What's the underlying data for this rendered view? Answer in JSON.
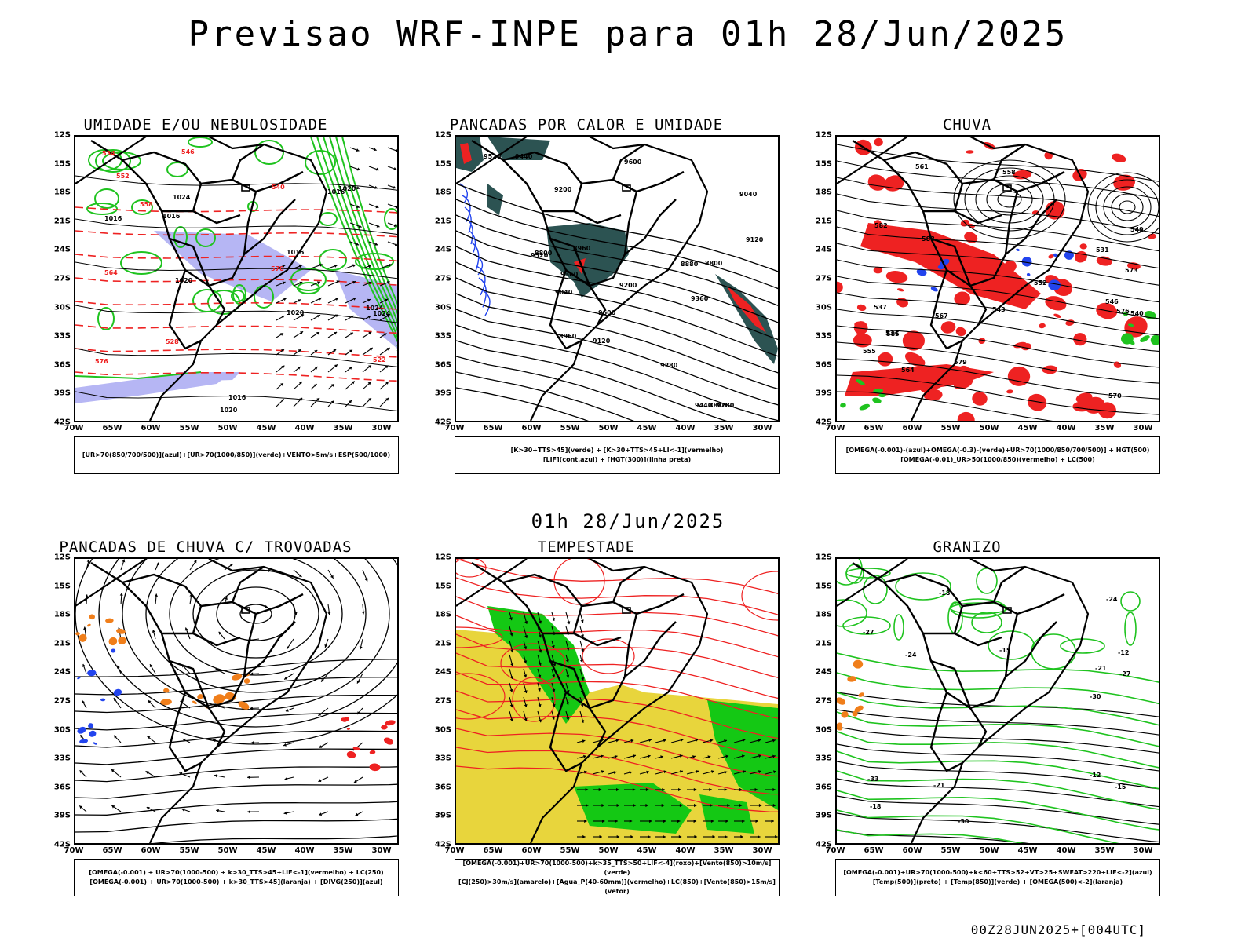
{
  "title": "Previsao WRF-INPE  para 01h 28/Jun/2025",
  "subtitle": "01h 28/Jun/2025",
  "footer": "00Z28JUN2025+[004UTC]",
  "lat_ticks": [
    "12S",
    "15S",
    "18S",
    "21S",
    "24S",
    "27S",
    "30S",
    "33S",
    "36S",
    "39S",
    "42S"
  ],
  "lon_ticks": [
    "70W",
    "65W",
    "60W",
    "55W",
    "50W",
    "45W",
    "40W",
    "35W",
    "30W"
  ],
  "colors": {
    "green": "#1fc31f",
    "red": "#ee2222",
    "blue": "#2244ee",
    "lavender": "#b6b6f4",
    "orange": "#f07e1a",
    "yellow": "#e8d53c",
    "darkgreen": "#2c5352",
    "vivid_green": "#14c814"
  },
  "panels": [
    {
      "id": "umidade",
      "title": "UMIDADE E/OU NEBULOSIDADE",
      "legend": [
        "[UR>70(850/700/500)](azul)+[UR>70(1000/850)](verde)+VENTO>5m/s+ESP(500/1000)"
      ],
      "contour_labels": [
        "1016",
        "1016",
        "1016",
        "1016",
        "1016",
        "1020",
        "1020",
        "1020",
        "1020",
        "1024",
        "1024",
        "1024",
        "552",
        "564",
        "570",
        "576",
        "540",
        "534",
        "528",
        "522",
        "546",
        "558"
      ]
    },
    {
      "id": "pancadas-calor",
      "title": "PANCADAS POR CALOR E UMIDADE",
      "legend": [
        "[K>30+TTS>45](verde) + [K>30+TTS>45+LI<-1](vermelho)",
        "[LIF](cont.azul) + [HGT(300)](linha preta)"
      ],
      "contour_labels": [
        "9600",
        "9520",
        "9440",
        "9360",
        "9280",
        "9200",
        "9120",
        "9040",
        "8960",
        "8880",
        "8800",
        "9600",
        "9520",
        "9440",
        "9360",
        "9280",
        "9200",
        "9120",
        "9040",
        "8960",
        "8880",
        "8800"
      ]
    },
    {
      "id": "chuva",
      "title": "CHUVA",
      "legend": [
        "[OMEGA(-0.001)-(azul)+OMEGA(-0.3)-(verde)+UR>70(1000/850/700/500)] + HGT(500)",
        "[OMEGA(-0.01)_UR>50(1000/850)(vermelho) + LC(500)"
      ],
      "contour_labels": [
        "588",
        "585",
        "582",
        "579",
        "576",
        "573",
        "570",
        "567",
        "564",
        "561",
        "558",
        "555",
        "552",
        "549",
        "546",
        "543",
        "540",
        "537",
        "534",
        "531"
      ]
    },
    {
      "id": "pancadas-trovoadas",
      "title": "PANCADAS DE CHUVA C/ TROVOADAS",
      "legend": [
        "[OMEGA(-0.001) + UR>70(1000-500) + k>30_TTS>45+LIF<-1](vermelho) + LC(250)",
        "[OMEGA(-0.001) + UR>70(1000-500) + k>30_TTS>45](laranja) + [DIVG(250)](azul)"
      ],
      "contour_labels": []
    },
    {
      "id": "tempestade",
      "title": "TEMPESTADE",
      "legend": [
        "[OMEGA(-0.001)+UR>70(1000-500)+k>35_TTS>50+LIF<-4](roxo)+[Vento(850)>10m/s](verde)",
        "[CJ(250)>30m/s](amarelo)+[Agua_P(40-60mm)](vermelho)+LC(850)+[Vento(850)>15m/s](vetor)"
      ],
      "contour_labels": []
    },
    {
      "id": "granizo",
      "title": "GRANIZO",
      "legend": [
        "[OMEGA(-0.001)+UR>70(1000-500)+k<60+TTS>52+VT>25+SWEAT>220+LIF<-2](azul)",
        "[Temp(500)](preto) + [Temp(850)](verde) + [OMEGA(500)<-2](laranja)"
      ],
      "contour_labels": [
        "-12",
        "-12",
        "-15",
        "-15",
        "-18",
        "-18",
        "-21",
        "-21",
        "-24",
        "-24",
        "-27",
        "-27",
        "-30",
        "-30",
        "-33"
      ]
    }
  ]
}
